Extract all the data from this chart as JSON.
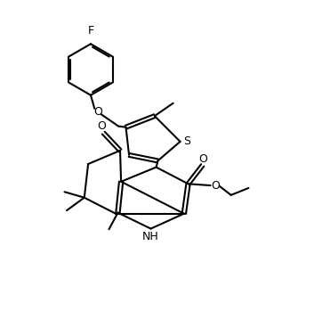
{
  "bg_color": "#ffffff",
  "lw": 1.5,
  "fs": 9,
  "figsize": [
    3.62,
    3.68
  ],
  "dpi": 100,
  "xlim": [
    0,
    10
  ],
  "ylim": [
    0,
    10
  ]
}
